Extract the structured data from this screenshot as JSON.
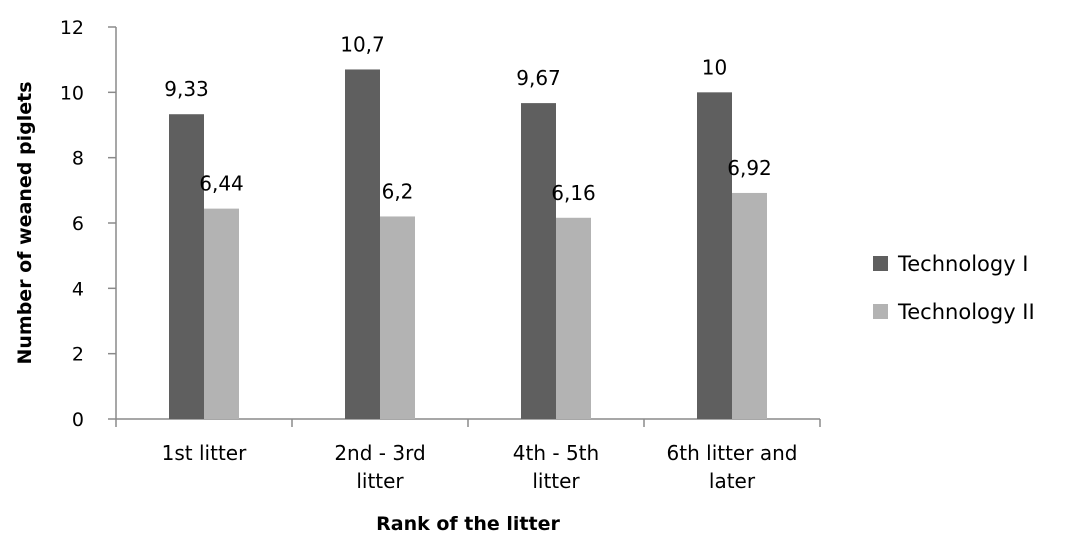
{
  "chart_data": {
    "type": "bar",
    "title": "",
    "xlabel": "Rank of the litter",
    "ylabel": "Number of weaned piglets",
    "ylim": [
      0,
      12
    ],
    "yticks": [
      0,
      2,
      4,
      6,
      8,
      10,
      12
    ],
    "grid": false,
    "legend_position": "right",
    "categories": [
      [
        "1st litter"
      ],
      [
        "2nd - 3rd",
        "litter"
      ],
      [
        "4th - 5th",
        "litter"
      ],
      [
        "6th litter and",
        "later"
      ]
    ],
    "series": [
      {
        "name": "Technology I",
        "color": "#5f5f5f",
        "values": [
          9.33,
          10.7,
          9.67,
          10
        ],
        "labels": [
          "9,33",
          "10,7",
          "9,67",
          "10"
        ]
      },
      {
        "name": "Technology II",
        "color": "#b3b3b3",
        "values": [
          6.44,
          6.2,
          6.16,
          6.92
        ],
        "labels": [
          "6,44",
          "6,2",
          "6,16",
          "6,92"
        ]
      }
    ]
  }
}
